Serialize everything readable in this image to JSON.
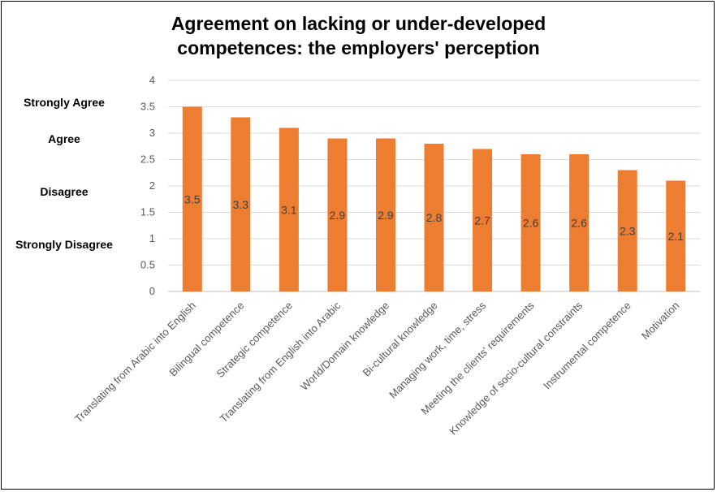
{
  "title_lines": [
    "Agreement  on lacking  or under-developed",
    "competences:  the employers'  perception"
  ],
  "likert_labels": [
    {
      "text": "Strongly Agree",
      "value": 3.5
    },
    {
      "text": "Agree",
      "value": 2.8
    },
    {
      "text": "Disagree",
      "value": 1.8
    },
    {
      "text": "Strongly Disagree",
      "value": 0.8
    }
  ],
  "colors": {
    "bar": "#ED7D31",
    "grid": "#D9D9D9",
    "axis": "#BFBFBF"
  },
  "chart_data": {
    "type": "bar",
    "title": "Agreement on lacking or under-developed competences: the employers' perception",
    "categories": [
      "Translating from Arabic into English",
      "Bilingual competence",
      "Strategic competence",
      "Translating from English into Arabic",
      "World/Domain knowledge",
      "Bi-cultural knowledge",
      "Managing work, time, stress",
      "Meeting the clients' requirements",
      "Knowledge of socio-cultural constraints",
      "Instrumental competence",
      "Motivation"
    ],
    "values": [
      3.5,
      3.3,
      3.1,
      2.9,
      2.9,
      2.8,
      2.7,
      2.6,
      2.6,
      2.3,
      2.1
    ],
    "data_labels": [
      "3.5",
      "3.3",
      "3.1",
      "2.9",
      "2.9",
      "2.8",
      "2.7",
      "2.6",
      "2.6",
      "2.3",
      "2.1"
    ],
    "yticks": [
      "0",
      "0.5",
      "1",
      "1.5",
      "2",
      "2.5",
      "3",
      "3.5",
      "4"
    ],
    "ylim": [
      0,
      4
    ],
    "grid": true,
    "legend": "none"
  }
}
